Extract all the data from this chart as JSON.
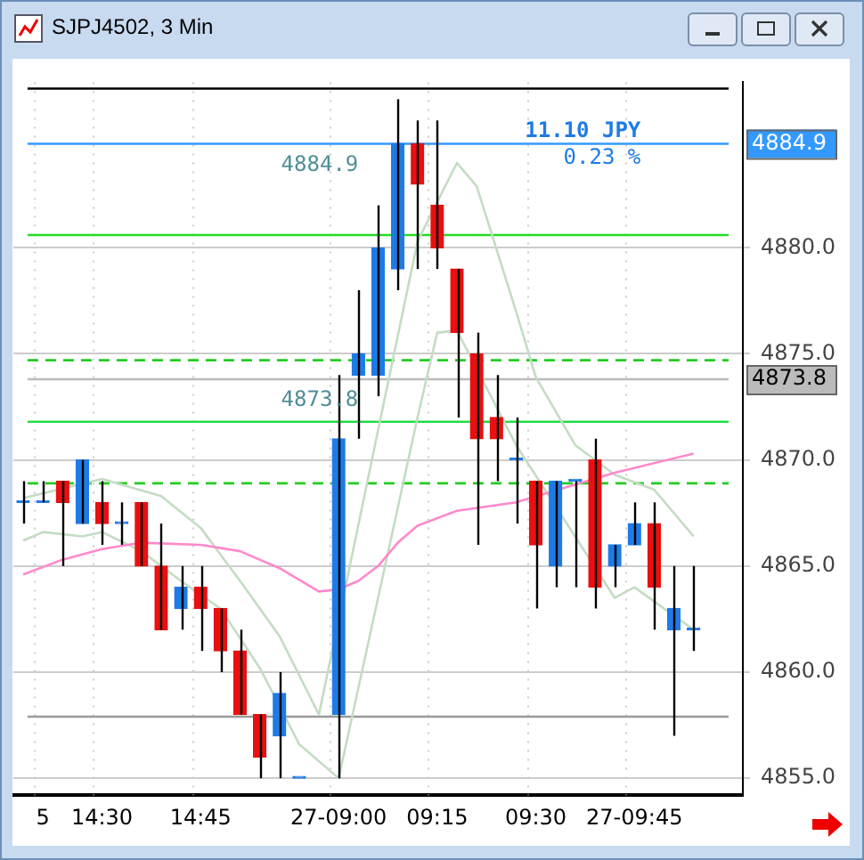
{
  "chart_data": {
    "type": "candlestick",
    "title": "SJPJ4502, 3 Min",
    "categories": [
      null,
      "5",
      null,
      null,
      "14:30",
      null,
      null,
      null,
      null,
      "14:45",
      null,
      null,
      null,
      null,
      null,
      null,
      "27-09:00",
      null,
      null,
      null,
      null,
      "09:15",
      null,
      null,
      null,
      null,
      "09:30",
      null,
      null,
      null,
      null,
      "27-09:45",
      null,
      null,
      null,
      null,
      null
    ],
    "ohlc": [
      [
        4868,
        4869,
        4867,
        4868
      ],
      [
        4868,
        4869,
        4868,
        4868
      ],
      [
        4869,
        4869,
        4865,
        4868
      ],
      [
        4867,
        4870,
        4867,
        4870
      ],
      [
        4868,
        4869,
        4866,
        4867
      ],
      [
        4867,
        4868,
        4866,
        4867
      ],
      [
        4868,
        4868,
        4865,
        4865
      ],
      [
        4865,
        4867,
        4862,
        4862
      ],
      [
        4863,
        4865,
        4862,
        4864
      ],
      [
        4864,
        4865,
        4861,
        4863
      ],
      [
        4863,
        4863,
        4860,
        4861
      ],
      [
        4861,
        4862,
        4858,
        4858
      ],
      [
        4858,
        4858,
        4855,
        4856
      ],
      [
        4857,
        4860,
        4855,
        4859
      ],
      [
        4855,
        4855,
        4855,
        4855
      ],
      null,
      [
        4858,
        4874,
        4855,
        4871
      ],
      [
        4874,
        4878,
        4871,
        4875
      ],
      [
        4874,
        4882,
        4873,
        4880
      ],
      [
        4879,
        4887,
        4878,
        4884.9
      ],
      [
        4884.9,
        4886,
        4879,
        4883
      ],
      [
        4882,
        4886,
        4879,
        4880
      ],
      [
        4879,
        4879,
        4872,
        4876
      ],
      [
        4875,
        4876,
        4866,
        4871
      ],
      [
        4872,
        4874,
        4869,
        4871
      ],
      [
        4870,
        4872,
        4867,
        4870
      ],
      [
        4869,
        4869,
        4863,
        4866
      ],
      [
        4865,
        4869,
        4864,
        4869
      ],
      [
        4869,
        4869,
        4864,
        4869
      ],
      [
        4870,
        4871,
        4863,
        4864
      ],
      [
        4865,
        4866,
        4864,
        4866
      ],
      [
        4866,
        4868,
        4866,
        4867
      ],
      [
        4867,
        4868,
        4862,
        4864
      ],
      [
        4862,
        4865,
        4857,
        4863
      ],
      [
        4862,
        4865,
        4861,
        4862
      ],
      null,
      null
    ],
    "colors": [
      "#1e7be6",
      "#1e7be6",
      "#e81010",
      "#1e7be6",
      "#e81010",
      "#1e7be6",
      "#e81010",
      "#e81010",
      "#1e7be6",
      "#e81010",
      "#e81010",
      "#e81010",
      "#e81010",
      "#1e7be6",
      "#1e7be6",
      null,
      "#1e7be6",
      "#1e7be6",
      "#1e7be6",
      "#1e7be6",
      "#e81010",
      "#e81010",
      "#e81010",
      "#e81010",
      "#e81010",
      "#1e7be6",
      "#e81010",
      "#1e7be6",
      "#1e7be6",
      "#e81010",
      "#1e7be6",
      "#1e7be6",
      "#e81010",
      "#1e7be6",
      "#1e7be6",
      null,
      null
    ],
    "series": [
      {
        "type": "line",
        "color": "#ff88cc",
        "values": [
          4864.6,
          null,
          4865.3,
          null,
          4865.8,
          null,
          4866.1,
          null,
          null,
          4866.0,
          null,
          4865.7,
          null,
          4864.9,
          null,
          4863.8,
          4863.9,
          4864.3,
          4865.0,
          4866.1,
          4866.9,
          null,
          4867.6,
          null,
          null,
          4868.0,
          null,
          null,
          null,
          null,
          4869.4,
          null,
          null,
          null,
          4870.3,
          null,
          null
        ]
      },
      {
        "type": "line",
        "color": "#c3dcc3",
        "values": [
          4868.2,
          null,
          null,
          null,
          4869.1,
          null,
          null,
          4868.3,
          null,
          4866.8,
          null,
          4864.3,
          null,
          4861.7,
          null,
          4858.0,
          null,
          null,
          4871.4,
          null,
          4880.3,
          null,
          4884.0,
          4882.9,
          null,
          4877.0,
          4873.9,
          null,
          4870.7,
          null,
          4869.3,
          null,
          4868.6,
          null,
          4866.4,
          null,
          null
        ]
      },
      {
        "type": "line",
        "color": "#c3dcc3",
        "values": [
          4866.2,
          4866.6,
          null,
          4866.4,
          4866.6,
          null,
          4865.7,
          null,
          4864.3,
          null,
          4863.0,
          null,
          4860.2,
          null,
          4856.6,
          null,
          4855.0,
          null,
          4863.5,
          null,
          4872.0,
          4876.0,
          4876.1,
          null,
          null,
          4870.7,
          null,
          null,
          null,
          null,
          4863.5,
          4864.0,
          null,
          null,
          4862.0,
          null,
          null
        ]
      }
    ],
    "ylim": [
      4854.2,
      4887.8
    ],
    "yticks": [
      {
        "value": 4855,
        "label": "4855.0"
      },
      {
        "value": 4860,
        "label": "4860.0"
      },
      {
        "value": 4865,
        "label": "4865.0"
      },
      {
        "value": 4870,
        "label": "4870.0"
      },
      {
        "value": 4875,
        "label": "4875.0"
      },
      {
        "value": 4880,
        "label": "4880.0"
      }
    ],
    "ref_lines": [
      {
        "axis": "y",
        "value": 4887.5,
        "color": "#000000",
        "line_style": "solid"
      },
      {
        "axis": "y",
        "value": 4880.6,
        "color": "#22dd22",
        "line_style": "solid"
      },
      {
        "axis": "y",
        "value": 4874.7,
        "color": "#22cc22",
        "line_style": "dashed"
      },
      {
        "axis": "y",
        "value": 4871.8,
        "color": "#22dd44",
        "line_style": "solid"
      },
      {
        "axis": "y",
        "value": 4868.9,
        "color": "#22cc22",
        "line_style": "dashed"
      },
      {
        "axis": "y",
        "value": 4857.9,
        "color": "#999999",
        "line_style": "solid"
      },
      {
        "axis": "y",
        "value": 4884.9,
        "label": "4884.9",
        "color": "#3399ff",
        "line_style": "solid"
      },
      {
        "axis": "y",
        "value": 4873.8,
        "label": "4873.8",
        "color": "#bbbbbb",
        "line_style": "solid"
      }
    ],
    "annotations": [
      {
        "text": "4884.9",
        "y": 4884.9
      },
      {
        "text": "4873.8",
        "y": 4873.8
      },
      "11.10 JPY",
      "0.23 %"
    ],
    "grid": true,
    "legend": false,
    "marker": "none",
    "line_style": "solid"
  }
}
